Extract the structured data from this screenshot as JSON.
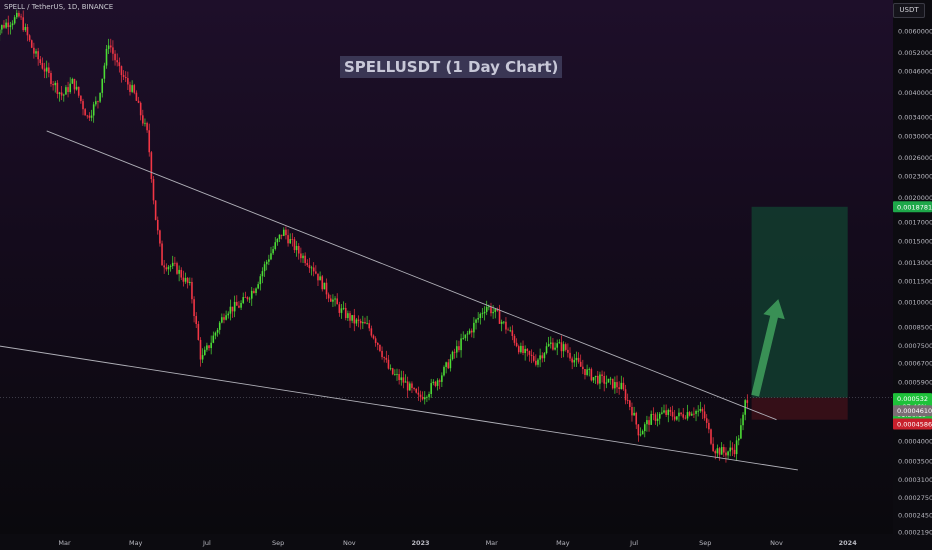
{
  "header": {
    "symbol": "SPELL / TetherUS, 1D, BINANCE",
    "currency": "USDT",
    "title": "SPELLUSDT (1 Day Chart)"
  },
  "colors": {
    "up": "#22ab94",
    "up_bright": "#4cdd36",
    "down": "#f23645",
    "trendline": "#b0b0b8",
    "target_zone": "#123a2e",
    "stop_zone": "#3a1018",
    "arrow": "#3e9a5a"
  },
  "chart_data": {
    "type": "candlestick",
    "scale": "log",
    "x_ticks": [
      "Mar",
      "May",
      "Jul",
      "Sep",
      "Nov",
      "2023",
      "Mar",
      "May",
      "Jul",
      "Sep",
      "Nov",
      "2024"
    ],
    "x_tick_months": [
      2,
      4,
      6,
      8,
      10,
      12,
      14,
      16,
      18,
      20,
      22,
      24
    ],
    "y_ticks": [
      "0.0060000",
      "0.0052000",
      "0.0046000",
      "0.0040000",
      "0.0034000",
      "0.0030000",
      "0.0026000",
      "0.0023000",
      "0.0020000",
      "0.0017000",
      "0.0015000",
      "0.0013000",
      "0.0011500",
      "0.0010000",
      "0.0008500",
      "0.0007500",
      "0.0006700",
      "0.0005900",
      "0.0004000",
      "0.0003500",
      "0.0003100",
      "0.0002750",
      "0.0002450",
      "0.0002190"
    ],
    "price_path": [
      [
        0.0,
        0.0058
      ],
      [
        0.4,
        0.0063
      ],
      [
        0.8,
        0.0066
      ],
      [
        1.2,
        0.0052
      ],
      [
        1.6,
        0.0045
      ],
      [
        2.0,
        0.0039
      ],
      [
        2.3,
        0.0043
      ],
      [
        2.7,
        0.0034
      ],
      [
        3.0,
        0.0038
      ],
      [
        3.3,
        0.0056
      ],
      [
        3.6,
        0.0046
      ],
      [
        4.0,
        0.004
      ],
      [
        4.4,
        0.003
      ],
      [
        4.6,
        0.0018
      ],
      [
        4.8,
        0.0013
      ],
      [
        5.2,
        0.00125
      ],
      [
        5.6,
        0.0011
      ],
      [
        5.9,
        0.00068
      ],
      [
        6.2,
        0.00078
      ],
      [
        6.6,
        0.00095
      ],
      [
        7.0,
        0.00098
      ],
      [
        7.4,
        0.0011
      ],
      [
        7.8,
        0.00135
      ],
      [
        8.2,
        0.0016
      ],
      [
        8.6,
        0.0014
      ],
      [
        9.0,
        0.00128
      ],
      [
        9.4,
        0.00108
      ],
      [
        9.8,
        0.00095
      ],
      [
        10.2,
        0.00088
      ],
      [
        10.6,
        0.00085
      ],
      [
        10.9,
        0.00075
      ],
      [
        11.2,
        0.00063
      ],
      [
        11.6,
        0.00059
      ],
      [
        12.0,
        0.00053
      ],
      [
        12.3,
        0.00056
      ],
      [
        12.7,
        0.00063
      ],
      [
        13.1,
        0.00074
      ],
      [
        13.5,
        0.00084
      ],
      [
        13.9,
        0.00098
      ],
      [
        14.2,
        0.00092
      ],
      [
        14.6,
        0.00081
      ],
      [
        14.9,
        0.00072
      ],
      [
        15.3,
        0.00068
      ],
      [
        15.7,
        0.00076
      ],
      [
        16.1,
        0.00074
      ],
      [
        16.5,
        0.00066
      ],
      [
        16.9,
        0.00061
      ],
      [
        17.3,
        0.00059
      ],
      [
        17.7,
        0.00057
      ],
      [
        18.0,
        0.00049
      ],
      [
        18.2,
        0.00042
      ],
      [
        18.5,
        0.00046
      ],
      [
        18.9,
        0.00048
      ],
      [
        19.3,
        0.00047
      ],
      [
        19.7,
        0.00049
      ],
      [
        20.0,
        0.00048
      ],
      [
        20.3,
        0.00038
      ],
      [
        20.6,
        0.00037
      ],
      [
        20.9,
        0.00038
      ],
      [
        21.1,
        0.00045
      ],
      [
        21.2,
        0.000532
      ]
    ],
    "trendlines": [
      {
        "name": "upper-trendline",
        "from": [
          1.5,
          0.0031
        ],
        "to": [
          22.0,
          0.00046
        ]
      },
      {
        "name": "lower-trendline",
        "from": [
          -2.0,
          0.00081
        ],
        "to": [
          22.6,
          0.00033
        ]
      }
    ],
    "position": {
      "entry": 0.000532,
      "target": 0.0018781,
      "stop": 0.00046,
      "from_month": 21.3,
      "to_month": 24.0
    },
    "price_labels": [
      {
        "name": "target-price-label",
        "text": "0.0018781",
        "price": 0.0018781,
        "color": "#1ea84a"
      },
      {
        "name": "current-price-label",
        "lines": [
          "0.000532",
          "+97.46%",
          "01:56:19"
        ],
        "price": 0.000532,
        "color": "#1ec23a"
      },
      {
        "name": "ref-price-label",
        "text": "0.0004610",
        "price": 0.000488,
        "color": "#7a6d74"
      },
      {
        "name": "stop-price-label",
        "text": "0.0004586",
        "price": 0.000447,
        "color": "#c8202c"
      }
    ]
  }
}
